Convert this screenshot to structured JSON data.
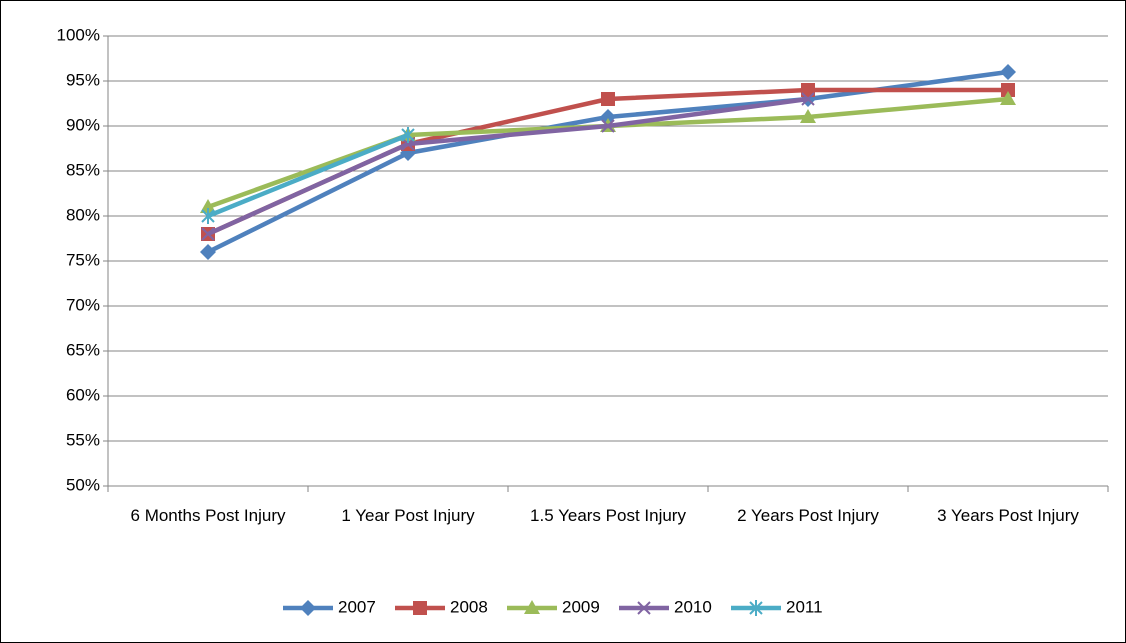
{
  "chart_data": {
    "type": "line",
    "categories": [
      "6 Months Post Injury",
      "1 Year Post Injury",
      "1.5 Years Post Injury",
      "2 Years Post Injury",
      "3 Years Post Injury"
    ],
    "series": [
      {
        "name": "2007",
        "color": "#4f81bd",
        "marker": "diamond",
        "values": [
          76,
          87,
          91,
          93,
          96
        ]
      },
      {
        "name": "2008",
        "color": "#c0504d",
        "marker": "square",
        "values": [
          78,
          88,
          93,
          94,
          94
        ]
      },
      {
        "name": "2009",
        "color": "#9bbb59",
        "marker": "triangle",
        "values": [
          81,
          89,
          90,
          91,
          93
        ]
      },
      {
        "name": "2010",
        "color": "#8064a2",
        "marker": "x",
        "values": [
          78,
          88,
          90,
          93,
          null
        ]
      },
      {
        "name": "2011",
        "color": "#4bacc6",
        "marker": "star",
        "values": [
          80,
          89,
          null,
          null,
          null
        ]
      }
    ],
    "ylim": [
      50,
      100
    ],
    "yticks": [
      {
        "value": 50,
        "label": "50%"
      },
      {
        "value": 55,
        "label": "55%"
      },
      {
        "value": 60,
        "label": "60%"
      },
      {
        "value": 65,
        "label": "65%"
      },
      {
        "value": 70,
        "label": "70%"
      },
      {
        "value": 75,
        "label": "75%"
      },
      {
        "value": 80,
        "label": "80%"
      },
      {
        "value": 85,
        "label": "85%"
      },
      {
        "value": 90,
        "label": "90%"
      },
      {
        "value": 95,
        "label": "95%"
      },
      {
        "value": 100,
        "label": "100%"
      }
    ],
    "grid": true,
    "legend": "bottom"
  }
}
